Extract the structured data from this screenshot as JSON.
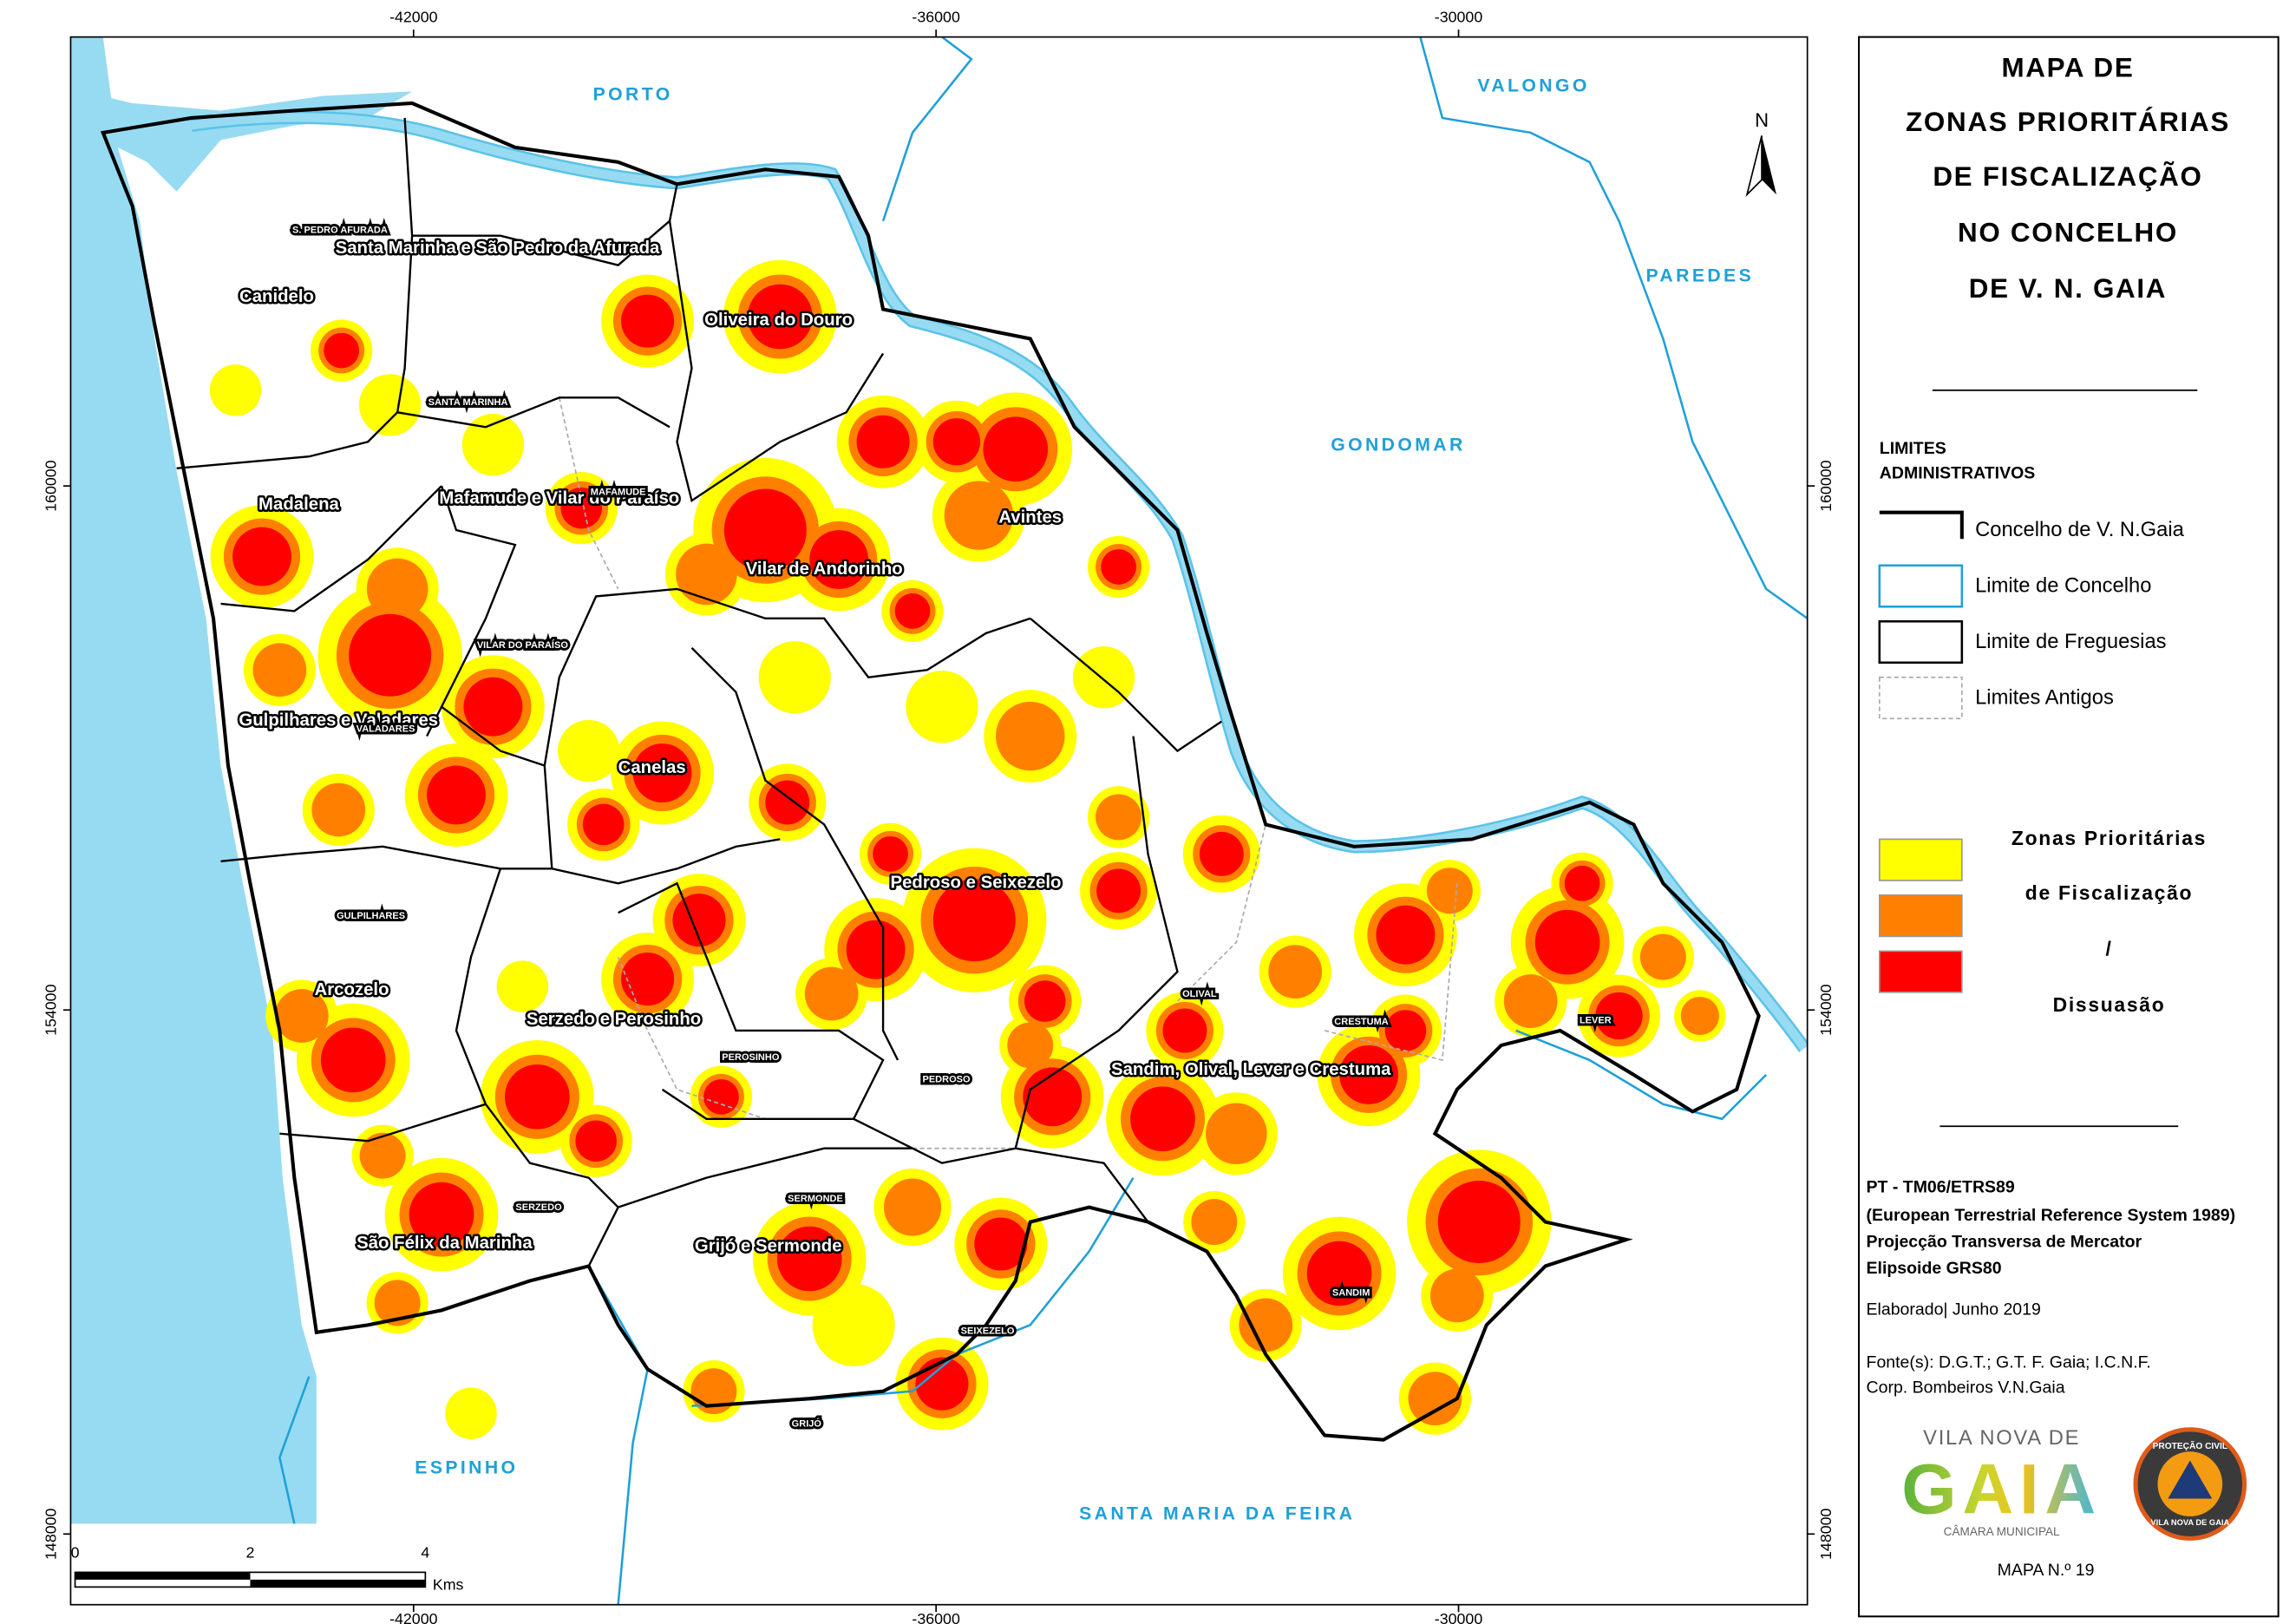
{
  "map": {
    "x_ticks": [
      -42000,
      -36000,
      -30000
    ],
    "y_ticks": [
      160000,
      154000,
      148000
    ],
    "neighbors": [
      "PORTO",
      "VALONGO",
      "PAREDES",
      "GONDOMAR",
      "ESPINHO",
      "SANTA MARIA DA FEIRA"
    ],
    "parishes": [
      "Santa Marinha e São Pedro da Afurada",
      "Canidelo",
      "Oliveira do Douro",
      "Madalena",
      "Mafamude e Vilar do Paraíso",
      "Vilar de Andorinho",
      "Avintes",
      "Gulpilhares e Valadares",
      "Canelas",
      "Pedroso e Seixezelo",
      "Arcozelo",
      "Serzedo e Perosinho",
      "Sandim, Olival, Lever e Crestuma",
      "São Félix da Marinha",
      "Grijó e Sermonde"
    ],
    "old_parishes": [
      "S. PEDRO AFURADA",
      "SANTA MARINHA",
      "MAFAMUDE",
      "VILAR DO PARAÍSO",
      "VALADARES",
      "GULPILHARES",
      "PEROSINHO",
      "PEDROSO",
      "OLIVAL",
      "CRESTUMA",
      "LEVER",
      "SERZEDO",
      "SERMONDE",
      "SANDIM",
      "SEIXEZELO",
      "GRIJÓ"
    ],
    "north": "N",
    "scale": {
      "ticks": [
        0,
        2,
        4
      ],
      "unit": "Kms"
    }
  },
  "legend": {
    "title": [
      "MAPA DE",
      "ZONAS PRIORITÁRIAS",
      "DE FISCALIZAÇÃO",
      "NO CONCELHO",
      "DE V. N. GAIA"
    ],
    "section_title": [
      "LIMITES",
      "ADMINISTRATIVOS"
    ],
    "items": [
      "Concelho de V. N.Gaia",
      "Limite de Concelho",
      "Limite de Freguesias",
      "Limites Antigos"
    ],
    "zones": [
      "Zonas Prioritárias",
      "de Fiscalização",
      "/",
      "Dissuasão"
    ]
  },
  "info": {
    "lines": [
      "PT - TM06/ETRS89",
      "(European Terrestrial Reference System 1989)",
      "Projecção Transversa de Mercator",
      "Elipsoide GRS80"
    ],
    "elaborated": "Elaborado| Junho 2019",
    "sources": [
      "Fonte(s): D.G.T.; G.T. F. Gaia; I.C.N.F.",
      "Corp. Bombeiros V.N.Gaia"
    ],
    "logo": {
      "line1": "VILA NOVA DE",
      "word": "GAIA",
      "line2": "CÂMARA MUNICIPAL"
    },
    "civil": [
      "PROTEÇÃO CIVIL",
      "VILA NOVA DE GAIA"
    ],
    "map_number": "MAPA N.º 19"
  }
}
